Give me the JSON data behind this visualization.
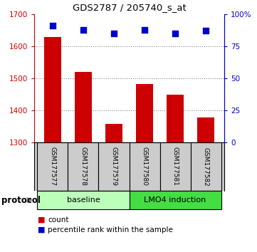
{
  "title": "GDS2787 / 205740_s_at",
  "samples": [
    "GSM177577",
    "GSM177578",
    "GSM177579",
    "GSM177580",
    "GSM177581",
    "GSM177582"
  ],
  "counts": [
    1630,
    1520,
    1358,
    1482,
    1448,
    1378
  ],
  "percentile_ranks": [
    91,
    88,
    85,
    88,
    85,
    87
  ],
  "ylim_left": [
    1300,
    1700
  ],
  "ylim_right": [
    0,
    100
  ],
  "yticks_left": [
    1300,
    1400,
    1500,
    1600,
    1700
  ],
  "yticks_right": [
    0,
    25,
    50,
    75,
    100
  ],
  "ytick_labels_right": [
    "0",
    "25",
    "50",
    "75",
    "100%"
  ],
  "bar_color": "#cc0000",
  "dot_color": "#0000cc",
  "protocol_groups": [
    {
      "label": "baseline",
      "samples": [
        0,
        1,
        2
      ],
      "color": "#bbffbb"
    },
    {
      "label": "LMO4 induction",
      "samples": [
        3,
        4,
        5
      ],
      "color": "#44dd44"
    }
  ],
  "legend_count_label": "count",
  "legend_percentile_label": "percentile rank within the sample",
  "protocol_label": "protocol",
  "background_color": "#ffffff",
  "grid_color": "#888888",
  "sample_box_color": "#cccccc"
}
